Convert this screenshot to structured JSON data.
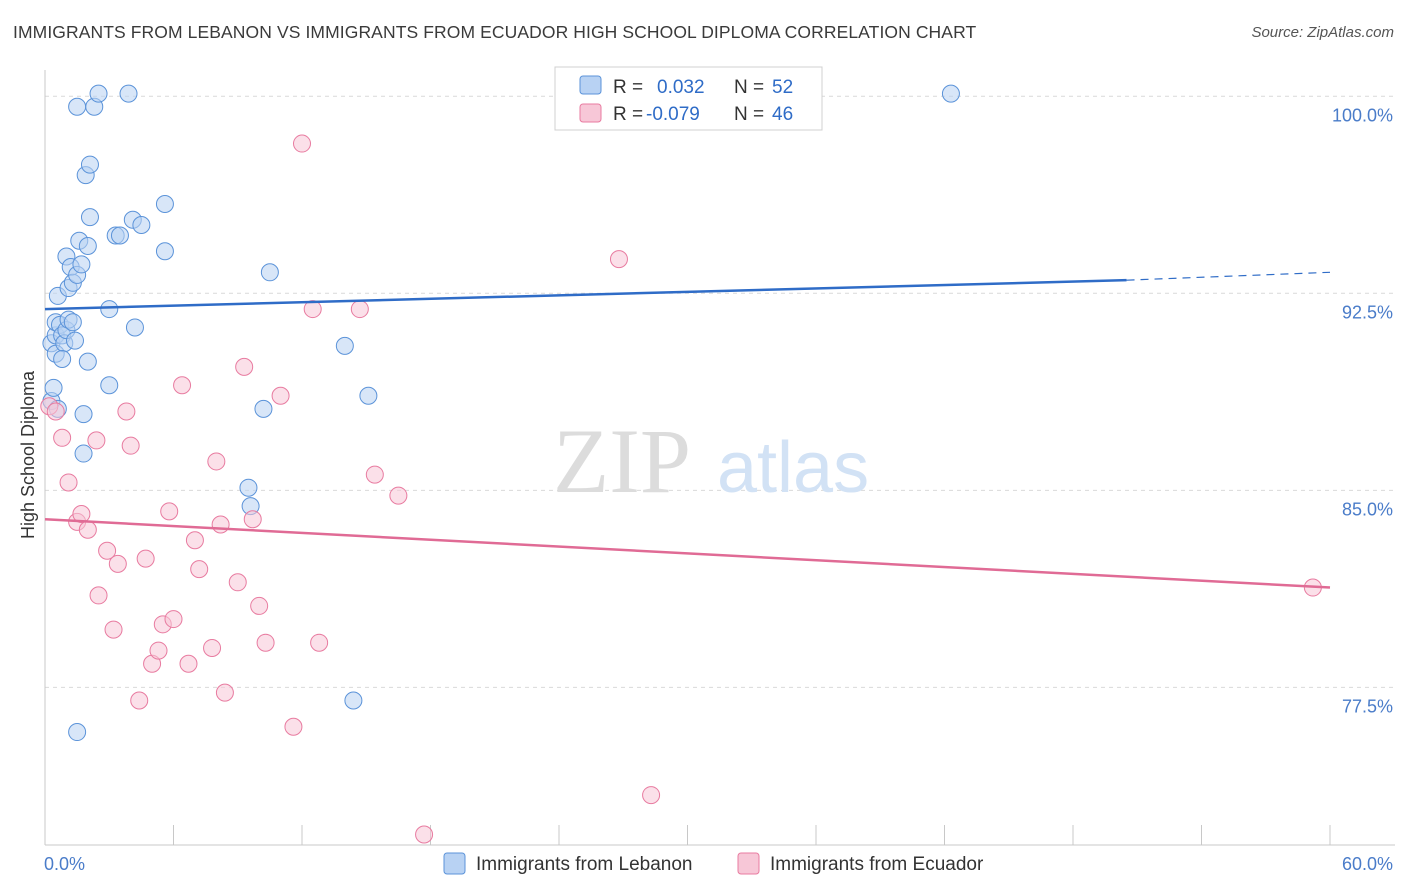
{
  "title": "IMMIGRANTS FROM LEBANON VS IMMIGRANTS FROM ECUADOR HIGH SCHOOL DIPLOMA CORRELATION CHART",
  "source": "Source: ZipAtlas.com",
  "watermark": {
    "zip": "ZIP",
    "atlas": "atlas"
  },
  "legend_top": [
    {
      "r_label": "R =",
      "r_value": "0.032",
      "n_label": "N =",
      "n_value": "52",
      "color": "#5b93d9",
      "fill": "#b8d2f3"
    },
    {
      "r_label": "R =",
      "r_value": "-0.079",
      "n_label": "N =",
      "n_value": "46",
      "color": "#e87ba0",
      "fill": "#f7c7d7"
    }
  ],
  "chart_data": {
    "type": "scatter",
    "title": "IMMIGRANTS FROM LEBANON VS IMMIGRANTS FROM ECUADOR HIGH SCHOOL DIPLOMA CORRELATION CHART",
    "xlabel": "",
    "ylabel": "High School Diploma",
    "xlim": [
      0,
      60
    ],
    "ylim": [
      71.5,
      101
    ],
    "x_tick_labels": [
      "0.0%",
      "60.0%"
    ],
    "y_ticks": [
      77.5,
      85.0,
      92.5,
      100.0
    ],
    "y_tick_labels": [
      "77.5%",
      "85.0%",
      "92.5%",
      "100.0%"
    ],
    "grid": "horizontal dashed",
    "legend_placement": "bottom-center",
    "series": [
      {
        "name": "Immigrants from Lebanon",
        "color": "#5b93d9",
        "fill": "#b8d2f3",
        "trend": {
          "x": [
            0,
            50.5
          ],
          "y": [
            91.9,
            93.0
          ],
          "dashed_to": [
            60,
            93.3
          ]
        },
        "points": [
          [
            0.3,
            88.4
          ],
          [
            0.4,
            88.9
          ],
          [
            0.3,
            90.6
          ],
          [
            0.5,
            90.9
          ],
          [
            0.5,
            91.4
          ],
          [
            0.6,
            92.4
          ],
          [
            0.5,
            90.2
          ],
          [
            0.7,
            91.3
          ],
          [
            0.8,
            90.9
          ],
          [
            0.9,
            90.6
          ],
          [
            0.6,
            88.1
          ],
          [
            0.8,
            90.0
          ],
          [
            1.0,
            91.1
          ],
          [
            1.1,
            92.7
          ],
          [
            1.0,
            93.9
          ],
          [
            1.1,
            91.5
          ],
          [
            1.2,
            93.5
          ],
          [
            1.3,
            92.9
          ],
          [
            1.4,
            90.7
          ],
          [
            1.3,
            91.4
          ],
          [
            1.5,
            93.2
          ],
          [
            1.6,
            94.5
          ],
          [
            1.7,
            93.6
          ],
          [
            1.9,
            97.0
          ],
          [
            2.1,
            97.4
          ],
          [
            1.5,
            99.6
          ],
          [
            2.3,
            99.6
          ],
          [
            2.5,
            100.1
          ],
          [
            3.9,
            100.1
          ],
          [
            2.0,
            94.3
          ],
          [
            2.1,
            95.4
          ],
          [
            1.8,
            87.9
          ],
          [
            1.8,
            86.4
          ],
          [
            2.0,
            89.9
          ],
          [
            3.0,
            89.0
          ],
          [
            3.0,
            91.9
          ],
          [
            3.3,
            94.7
          ],
          [
            3.5,
            94.7
          ],
          [
            4.1,
            95.3
          ],
          [
            4.5,
            95.1
          ],
          [
            5.6,
            95.9
          ],
          [
            4.2,
            91.2
          ],
          [
            5.6,
            94.1
          ],
          [
            10.5,
            93.3
          ],
          [
            10.2,
            88.1
          ],
          [
            9.5,
            85.1
          ],
          [
            9.6,
            84.4
          ],
          [
            14.0,
            90.5
          ],
          [
            15.1,
            88.6
          ],
          [
            1.5,
            75.8
          ],
          [
            14.4,
            77.0
          ],
          [
            42.3,
            100.1
          ]
        ]
      },
      {
        "name": "Immigrants from Ecuador",
        "color": "#e87ba0",
        "fill": "#f7c7d7",
        "trend": {
          "x": [
            0,
            60
          ],
          "y": [
            83.9,
            81.3
          ]
        },
        "points": [
          [
            0.2,
            88.2
          ],
          [
            0.5,
            88.0
          ],
          [
            0.8,
            87.0
          ],
          [
            1.1,
            85.3
          ],
          [
            1.5,
            83.8
          ],
          [
            1.7,
            84.1
          ],
          [
            2.0,
            83.5
          ],
          [
            2.4,
            86.9
          ],
          [
            2.5,
            81.0
          ],
          [
            2.9,
            82.7
          ],
          [
            3.2,
            79.7
          ],
          [
            3.4,
            82.2
          ],
          [
            3.8,
            88.0
          ],
          [
            4.0,
            86.7
          ],
          [
            4.4,
            77.0
          ],
          [
            4.7,
            82.4
          ],
          [
            5.0,
            78.4
          ],
          [
            5.3,
            78.9
          ],
          [
            5.5,
            79.9
          ],
          [
            5.8,
            84.2
          ],
          [
            6.0,
            80.1
          ],
          [
            6.4,
            89.0
          ],
          [
            6.7,
            78.4
          ],
          [
            7.0,
            83.1
          ],
          [
            7.2,
            82.0
          ],
          [
            7.8,
            79.0
          ],
          [
            8.0,
            86.1
          ],
          [
            8.2,
            83.7
          ],
          [
            8.4,
            77.3
          ],
          [
            9.0,
            81.5
          ],
          [
            9.3,
            89.7
          ],
          [
            9.7,
            83.9
          ],
          [
            10.0,
            80.6
          ],
          [
            10.3,
            79.2
          ],
          [
            11.0,
            88.6
          ],
          [
            11.6,
            76.0
          ],
          [
            12.0,
            98.2
          ],
          [
            12.5,
            91.9
          ],
          [
            12.8,
            79.2
          ],
          [
            14.7,
            91.9
          ],
          [
            15.4,
            85.6
          ],
          [
            16.5,
            84.8
          ],
          [
            17.7,
            71.9
          ],
          [
            26.8,
            93.8
          ],
          [
            28.3,
            73.4
          ],
          [
            59.2,
            81.3
          ]
        ]
      }
    ]
  }
}
